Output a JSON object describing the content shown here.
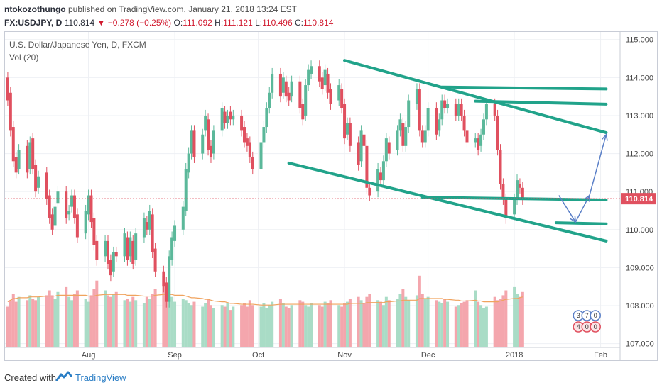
{
  "header": {
    "author": "ntokozothungo",
    "published_text": "published on TradingView.com, January 21, 2018 13:24 EST",
    "symbol": "FX:USDJPY, D",
    "last": "110.814",
    "change": "−0.278 (−0.25%)",
    "open_label": "O:",
    "open": "111.092",
    "high_label": "H:",
    "high": "111.121",
    "low_label": "L:",
    "low": "110.496",
    "close_label": "C:",
    "close": "110.814"
  },
  "legend": {
    "series_title": "U.S. Dollar/Japanese Yen, D, FXCM",
    "volume_title": "Vol (20)"
  },
  "footer": {
    "created_with": "Created with",
    "brand": "TradingView"
  },
  "colors": {
    "up": "#5bb89a",
    "down": "#e0505f",
    "trendline": "#21a38a",
    "projection": "#5a7fc7",
    "vol_up": "#a9dcc6",
    "vol_down": "#f4a6ad",
    "vol_ma": "#f0a35e",
    "price_tag": "#e0505f"
  },
  "chart_data": {
    "type": "candlestick",
    "title": "U.S. Dollar/Japanese Yen, D, FXCM",
    "price_axis": {
      "min": 106.9,
      "max": 115.2,
      "ticks": [
        "115.000",
        "114.000",
        "113.000",
        "112.000",
        "111.000",
        "110.000",
        "109.000",
        "108.000",
        "107.000"
      ]
    },
    "time_axis": {
      "labels": [
        "Aug",
        "Sep",
        "Oct",
        "Nov",
        "Dec",
        "2018",
        "Feb"
      ]
    },
    "current_price": "110.814",
    "badges": [
      "3",
      "7",
      "0",
      "4",
      "0",
      "0"
    ],
    "candles": [
      [
        114.0,
        113.4
      ],
      [
        113.6,
        112.6
      ],
      [
        112.7,
        111.8
      ],
      [
        111.9,
        111.5
      ],
      [
        111.6,
        112.1
      ],
      [
        112.2,
        111.5
      ],
      [
        111.6,
        112.3
      ],
      [
        112.4,
        111.6
      ],
      [
        111.7,
        111.0
      ],
      [
        111.1,
        111.4
      ],
      [
        111.5,
        110.8
      ],
      [
        110.9,
        110.3
      ],
      [
        110.4,
        110.0
      ],
      [
        110.1,
        110.6
      ],
      [
        110.7,
        111.0
      ],
      [
        111.0,
        110.3
      ],
      [
        110.4,
        110.5
      ],
      [
        110.6,
        110.9
      ],
      [
        110.9,
        110.3
      ],
      [
        110.4,
        109.8
      ],
      [
        109.9,
        110.5
      ],
      [
        110.4,
        110.9
      ],
      [
        110.9,
        110.2
      ],
      [
        110.3,
        109.6
      ],
      [
        109.7,
        109.2
      ],
      [
        109.3,
        109.7
      ],
      [
        109.7,
        109.1
      ],
      [
        109.2,
        108.8
      ],
      [
        108.9,
        109.4
      ],
      [
        109.4,
        109.3
      ],
      [
        109.3,
        109.9
      ],
      [
        109.8,
        109.2
      ],
      [
        109.3,
        109.8
      ],
      [
        109.7,
        109.1
      ],
      [
        109.2,
        109.9
      ],
      [
        109.8,
        110.3
      ],
      [
        110.2,
        110.0
      ],
      [
        110.0,
        110.5
      ],
      [
        110.4,
        109.4
      ],
      [
        109.5,
        108.9
      ],
      [
        108.9,
        108.5
      ],
      [
        108.6,
        108.1
      ],
      [
        108.1,
        109.3
      ],
      [
        109.2,
        109.8
      ],
      [
        109.7,
        110.1
      ],
      [
        110.0,
        110.6
      ],
      [
        110.5,
        111.6
      ],
      [
        111.5,
        112.0
      ],
      [
        112.0,
        112.6
      ],
      [
        112.6,
        111.9
      ],
      [
        112.0,
        112.5
      ],
      [
        112.6,
        113.0
      ],
      [
        112.9,
        112.1
      ],
      [
        112.2,
        111.9
      ],
      [
        112.0,
        112.6
      ],
      [
        112.6,
        113.2
      ],
      [
        113.1,
        112.8
      ],
      [
        112.8,
        113.0
      ],
      [
        113.1,
        112.9
      ],
      [
        112.9,
        113.0
      ],
      [
        113.0,
        112.6
      ],
      [
        112.7,
        112.3
      ],
      [
        112.4,
        112.2
      ],
      [
        112.3,
        111.9
      ],
      [
        111.9,
        111.6
      ],
      [
        111.6,
        112.3
      ],
      [
        112.3,
        112.7
      ],
      [
        112.7,
        113.2
      ],
      [
        113.2,
        113.6
      ],
      [
        113.6,
        114.1
      ],
      [
        114.1,
        113.5
      ],
      [
        113.6,
        114.0
      ],
      [
        113.9,
        113.5
      ],
      [
        113.6,
        113.4
      ],
      [
        113.5,
        113.9
      ],
      [
        113.9,
        113.2
      ],
      [
        113.3,
        112.9
      ],
      [
        113.0,
        113.8
      ],
      [
        113.8,
        114.2
      ],
      [
        114.1,
        114.3
      ],
      [
        114.3,
        113.9
      ],
      [
        114.0,
        113.7
      ],
      [
        113.8,
        114.2
      ],
      [
        114.1,
        113.6
      ],
      [
        113.7,
        113.3
      ],
      [
        113.4,
        113.8
      ],
      [
        113.7,
        113.2
      ],
      [
        113.3,
        112.4
      ],
      [
        112.5,
        112.8
      ],
      [
        112.8,
        112.2
      ],
      [
        112.3,
        111.7
      ],
      [
        111.8,
        112.6
      ],
      [
        112.5,
        112.2
      ],
      [
        112.2,
        111.1
      ],
      [
        111.1,
        110.9
      ],
      [
        111.0,
        111.6
      ],
      [
        111.5,
        111.3
      ],
      [
        111.3,
        111.8
      ],
      [
        111.8,
        112.4
      ],
      [
        112.3,
        112.0
      ],
      [
        112.1,
        112.6
      ],
      [
        112.6,
        112.9
      ],
      [
        112.8,
        112.2
      ],
      [
        112.2,
        112.7
      ],
      [
        112.7,
        113.4
      ],
      [
        113.3,
        113.7
      ],
      [
        113.7,
        112.6
      ],
      [
        112.6,
        112.3
      ],
      [
        112.3,
        112.6
      ],
      [
        112.6,
        113.2
      ],
      [
        113.2,
        112.5
      ],
      [
        112.6,
        112.9
      ],
      [
        112.9,
        113.4
      ],
      [
        113.4,
        113.2
      ],
      [
        113.2,
        113.3
      ],
      [
        113.3,
        113.0
      ],
      [
        113.0,
        113.3
      ],
      [
        113.3,
        113.0
      ],
      [
        113.0,
        112.6
      ],
      [
        112.6,
        112.3
      ],
      [
        112.3,
        112.4
      ],
      [
        112.4,
        112.1
      ],
      [
        112.2,
        112.5
      ],
      [
        112.5,
        112.9
      ],
      [
        112.9,
        113.3
      ],
      [
        113.3,
        113.0
      ],
      [
        113.0,
        112.1
      ],
      [
        112.1,
        111.2
      ],
      [
        111.2,
        110.8
      ],
      [
        110.8,
        110.3
      ],
      [
        110.4,
        110.8
      ],
      [
        110.8,
        111.3
      ],
      [
        111.2,
        111.1
      ],
      [
        111.1,
        110.8
      ]
    ],
    "volumes": [
      0.5,
      0.58,
      0.66,
      0.56,
      0.62,
      0.58,
      0.64,
      0.6,
      0.58,
      0.62,
      0.64,
      0.7,
      0.64,
      0.6,
      0.68,
      0.74,
      0.62,
      0.58,
      0.66,
      0.7,
      0.6,
      0.56,
      0.64,
      0.72,
      0.82,
      0.7,
      0.64,
      0.62,
      0.66,
      0.68,
      0.58,
      0.6,
      0.56,
      0.62,
      0.58,
      0.54,
      0.62,
      0.6,
      0.66,
      0.72,
      0.88,
      0.8,
      0.7,
      0.62,
      0.56,
      0.6,
      0.58,
      0.54,
      0.52,
      0.56,
      0.5,
      0.54,
      0.6,
      0.52,
      0.48,
      0.52,
      0.5,
      0.54,
      0.46,
      0.5,
      0.52,
      0.54,
      0.5,
      0.58,
      0.52,
      0.5,
      0.54,
      0.48,
      0.52,
      0.56,
      0.6,
      0.54,
      0.5,
      0.48,
      0.52,
      0.58,
      0.56,
      0.52,
      0.5,
      0.54,
      0.52,
      0.5,
      0.56,
      0.54,
      0.58,
      0.52,
      0.5,
      0.54,
      0.56,
      0.6,
      0.62,
      0.58,
      0.54,
      0.62,
      0.66,
      0.58,
      0.56,
      0.52,
      0.62,
      0.58,
      0.6,
      0.66,
      0.72,
      0.62,
      0.58,
      0.64,
      0.88,
      0.66,
      0.6,
      0.62,
      0.58,
      0.56,
      0.54,
      0.6,
      0.56,
      0.5,
      0.52,
      0.54,
      0.56,
      0.58,
      0.7,
      0.56,
      0.52,
      0.48,
      0.5,
      0.62,
      0.58,
      0.6,
      0.64,
      0.7,
      0.74,
      0.66,
      0.62,
      0.68
    ],
    "volume_ma": [
      0.56,
      0.58,
      0.6,
      0.6,
      0.61,
      0.61,
      0.62,
      0.62,
      0.62,
      0.62,
      0.63,
      0.63,
      0.63,
      0.63,
      0.64,
      0.64,
      0.64,
      0.64,
      0.64,
      0.64,
      0.64,
      0.63,
      0.63,
      0.63,
      0.64,
      0.65,
      0.65,
      0.65,
      0.65,
      0.65,
      0.65,
      0.64,
      0.64,
      0.64,
      0.64,
      0.63,
      0.63,
      0.63,
      0.63,
      0.64,
      0.65,
      0.65,
      0.65,
      0.65,
      0.64,
      0.64,
      0.63,
      0.62,
      0.61,
      0.61,
      0.6,
      0.59,
      0.59,
      0.58,
      0.57,
      0.56,
      0.56,
      0.55,
      0.54,
      0.54,
      0.53,
      0.53,
      0.53,
      0.53,
      0.53,
      0.52,
      0.52,
      0.52,
      0.52,
      0.52,
      0.53,
      0.53,
      0.53,
      0.53,
      0.53,
      0.53,
      0.53,
      0.53,
      0.53,
      0.53,
      0.53,
      0.53,
      0.53,
      0.53,
      0.53,
      0.53,
      0.53,
      0.53,
      0.53,
      0.54,
      0.54,
      0.54,
      0.54,
      0.55,
      0.55,
      0.55,
      0.55,
      0.55,
      0.56,
      0.56,
      0.57,
      0.57,
      0.58,
      0.58,
      0.58,
      0.58,
      0.6,
      0.6,
      0.6,
      0.6,
      0.6,
      0.6,
      0.6,
      0.59,
      0.59,
      0.58,
      0.58,
      0.57,
      0.57,
      0.57,
      0.58,
      0.57,
      0.57,
      0.56,
      0.56,
      0.56,
      0.56,
      0.57,
      0.58,
      0.59,
      0.6,
      0.6,
      0.61,
      0.62
    ],
    "trendlines": [
      {
        "from": [
          "2017-11-01",
          114.45
        ],
        "to": [
          "2018-02-03",
          112.55
        ]
      },
      {
        "from": [
          "2017-10-12",
          111.75
        ],
        "to": [
          "2018-02-03",
          109.7
        ]
      },
      {
        "from": [
          "2017-11-29",
          110.85
        ],
        "to": [
          "2018-02-03",
          110.78
        ]
      },
      {
        "from": [
          "2017-12-06",
          113.75
        ],
        "to": [
          "2018-02-03",
          113.7
        ]
      },
      {
        "from": [
          "2017-12-18",
          113.38
        ],
        "to": [
          "2018-02-03",
          113.3
        ]
      },
      {
        "from": [
          "2018-01-16",
          110.18
        ],
        "to": [
          "2018-02-03",
          110.15
        ]
      }
    ],
    "projection": [
      [
        "2018-01-17",
        110.9
      ],
      [
        "2018-01-23",
        110.2
      ],
      [
        "2018-01-28",
        110.9
      ],
      [
        "2018-02-03",
        112.5
      ]
    ]
  }
}
